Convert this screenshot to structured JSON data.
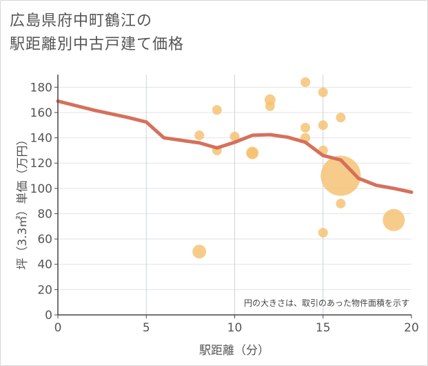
{
  "title_line1": "広島県府中町鶴江の",
  "title_line2": "駅距離別中古戸建て価格",
  "colors": {
    "bubble": "#f5c170",
    "line": "#d6705a",
    "grid": "#e3e3e3",
    "vgrid": "#c8d4de",
    "axis": "#444444"
  },
  "chart_data": {
    "type": "scatter",
    "title": "広島県府中町鶴江の駅距離別中古戸建て価格",
    "xlabel": "駅距離（分）",
    "ylabel": "坪（3.3㎡）単価（万円）",
    "xlim": [
      0,
      20
    ],
    "ylim": [
      0,
      190
    ],
    "xticks": [
      0,
      5,
      10,
      15,
      20
    ],
    "yticks": [
      0,
      20,
      40,
      60,
      80,
      100,
      120,
      140,
      160,
      180
    ],
    "note": "円の大きさは、取引のあった物件面積を示す",
    "points": [
      {
        "x": 8,
        "y": 142,
        "r": 7
      },
      {
        "x": 8,
        "y": 50,
        "r": 10
      },
      {
        "x": 9,
        "y": 162,
        "r": 7
      },
      {
        "x": 9,
        "y": 130,
        "r": 7
      },
      {
        "x": 10,
        "y": 141,
        "r": 7
      },
      {
        "x": 11,
        "y": 128,
        "r": 9
      },
      {
        "x": 11,
        "y": 128,
        "r": 8
      },
      {
        "x": 12,
        "y": 170,
        "r": 8
      },
      {
        "x": 12,
        "y": 165,
        "r": 7
      },
      {
        "x": 14,
        "y": 184,
        "r": 7
      },
      {
        "x": 14,
        "y": 148,
        "r": 7
      },
      {
        "x": 14,
        "y": 140,
        "r": 7
      },
      {
        "x": 15,
        "y": 176,
        "r": 7
      },
      {
        "x": 15,
        "y": 150,
        "r": 7
      },
      {
        "x": 15,
        "y": 130,
        "r": 7
      },
      {
        "x": 15,
        "y": 65,
        "r": 7
      },
      {
        "x": 16,
        "y": 156,
        "r": 7
      },
      {
        "x": 16,
        "y": 110,
        "r": 29
      },
      {
        "x": 16,
        "y": 88,
        "r": 7
      },
      {
        "x": 19,
        "y": 75,
        "r": 16
      }
    ],
    "trend": {
      "name": "trend",
      "x": [
        0,
        1,
        2,
        3,
        4,
        5,
        6,
        7,
        8,
        9,
        10,
        11,
        12,
        13,
        14,
        15,
        16,
        17,
        18,
        19,
        20
      ],
      "y": [
        169,
        165.5,
        162,
        159,
        156,
        152.5,
        140,
        138,
        136,
        132,
        136.5,
        142,
        142.5,
        140.5,
        136.5,
        126,
        122.5,
        108,
        102.5,
        100,
        97
      ]
    }
  }
}
